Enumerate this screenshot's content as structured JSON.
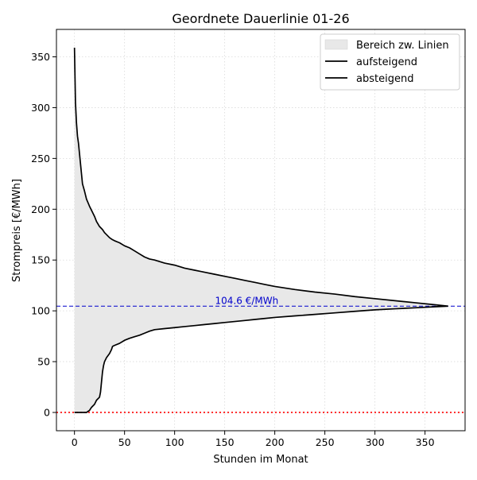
{
  "chart_data": {
    "type": "area",
    "title": "Geordnete Dauerlinie 01-26",
    "xlabel": "Stunden im Monat",
    "ylabel": "Strompreis [€/MWh]",
    "xlim": [
      -18,
      390
    ],
    "ylim": [
      -18,
      377
    ],
    "x_ticks": [
      0,
      50,
      100,
      150,
      200,
      250,
      300,
      350
    ],
    "y_ticks": [
      0,
      50,
      100,
      150,
      200,
      250,
      300,
      350
    ],
    "grid": true,
    "legend_position": "top-right",
    "colors": {
      "line": "#000000",
      "fill": "#e8e8e8",
      "mean_line": "#0000cc",
      "zero_line": "#ff0000",
      "grid": "#d9d9d9"
    },
    "mean_value": 104.6,
    "mean_label": "104.6 €/MWh",
    "zero_value": 0,
    "series": [
      {
        "name": "aufsteigend",
        "x": [
          0,
          5,
          10,
          12,
          15,
          17,
          20,
          22,
          25,
          26,
          27,
          28,
          29,
          30,
          32,
          35,
          37,
          38,
          40,
          45,
          50,
          55,
          60,
          65,
          70,
          75,
          80,
          90,
          100,
          110,
          120,
          130,
          140,
          150,
          160,
          170,
          180,
          190,
          200,
          220,
          240,
          260,
          280,
          300,
          320,
          340,
          360,
          373
        ],
        "values": [
          0,
          0,
          0,
          0,
          2,
          5,
          8,
          12,
          15,
          20,
          30,
          40,
          46,
          50,
          54,
          58,
          62,
          65,
          66,
          68,
          71,
          73,
          74.5,
          76,
          78,
          80,
          81.5,
          82.5,
          83.5,
          84.5,
          85.5,
          86.5,
          87.5,
          88.5,
          89.5,
          90.5,
          91.5,
          92.5,
          93.5,
          95,
          96.5,
          98,
          99.5,
          101,
          102,
          103,
          104,
          104.6
        ]
      },
      {
        "name": "absteigend",
        "x": [
          0,
          1,
          2,
          3,
          4,
          5,
          6,
          7,
          8,
          10,
          12,
          15,
          18,
          20,
          22,
          25,
          28,
          30,
          35,
          38,
          40,
          45,
          50,
          55,
          60,
          65,
          70,
          75,
          80,
          90,
          100,
          110,
          120,
          130,
          140,
          150,
          160,
          170,
          180,
          190,
          200,
          220,
          240,
          260,
          280,
          300,
          320,
          340,
          360,
          373
        ],
        "values": [
          359,
          305,
          285,
          272,
          265,
          255,
          245,
          235,
          225,
          218,
          210,
          203,
          197,
          193,
          188,
          183,
          180,
          177,
          172,
          170,
          169,
          167,
          164,
          162,
          159,
          156,
          153,
          151,
          150,
          147,
          145,
          142,
          140,
          138,
          136,
          134,
          132,
          130,
          128,
          126,
          124,
          121,
          118.5,
          116.5,
          114,
          112,
          110,
          108,
          106,
          104.6
        ]
      }
    ],
    "legend": [
      {
        "label": "Bereich zw. Linien",
        "kind": "fill"
      },
      {
        "label": "aufsteigend",
        "kind": "line"
      },
      {
        "label": "absteigend",
        "kind": "line"
      }
    ]
  }
}
